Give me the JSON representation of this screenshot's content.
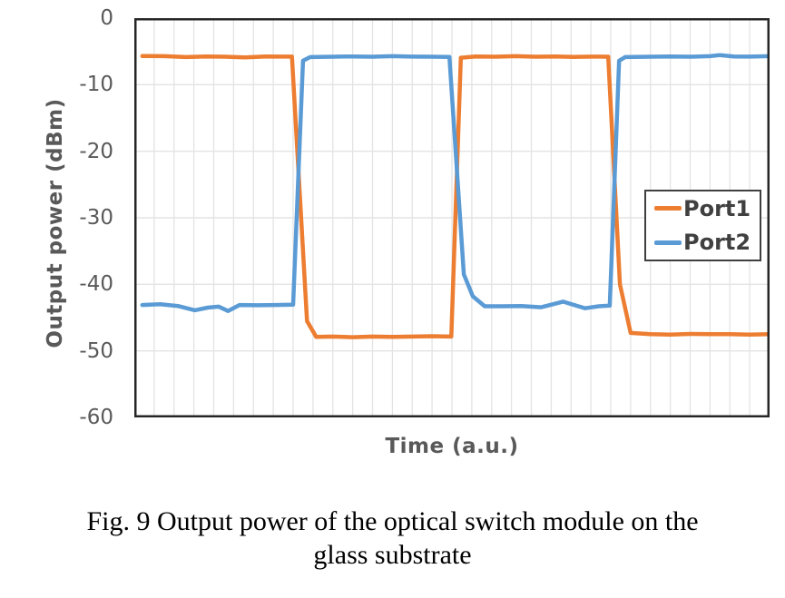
{
  "chart_data": {
    "type": "line",
    "title": "",
    "xlabel": "Time (a.u.)",
    "ylabel": "Output power (dBm)",
    "x_range": [
      0,
      32
    ],
    "y_range": [
      -60,
      0
    ],
    "y_ticks": [
      0,
      -10,
      -20,
      -30,
      -40,
      -50,
      -60
    ],
    "x_tick_labels": [],
    "grid": {
      "vertical_divisions": 32,
      "horizontal_divisions": 6,
      "color": "#E3E3E3",
      "visible": true
    },
    "axis": {
      "border_color": "#262626",
      "text_color": "#595959"
    },
    "legend": {
      "position": "inside-right",
      "border_color": "#3F3F3F",
      "text_color": "#404040"
    },
    "series": [
      {
        "name": "Port1",
        "color": "#ED7D31",
        "high_level_dBm": -5.8,
        "low_level_dBm": -47.8,
        "points": [
          [
            0.4,
            -5.7
          ],
          [
            1.5,
            -5.72
          ],
          [
            2.6,
            -5.85
          ],
          [
            3.6,
            -5.75
          ],
          [
            4.6,
            -5.8
          ],
          [
            5.6,
            -5.9
          ],
          [
            6.6,
            -5.75
          ],
          [
            7.4,
            -5.78
          ],
          [
            7.94,
            -5.78
          ],
          [
            8.7,
            -45.5
          ],
          [
            9.16,
            -47.9
          ],
          [
            10,
            -47.85
          ],
          [
            11,
            -47.95
          ],
          [
            12,
            -47.85
          ],
          [
            13,
            -47.9
          ],
          [
            14,
            -47.85
          ],
          [
            15,
            -47.8
          ],
          [
            15.97,
            -47.85
          ],
          [
            16.45,
            -5.95
          ],
          [
            17.2,
            -5.75
          ],
          [
            18.2,
            -5.8
          ],
          [
            19.2,
            -5.72
          ],
          [
            20.2,
            -5.8
          ],
          [
            21.2,
            -5.75
          ],
          [
            22.2,
            -5.82
          ],
          [
            23.2,
            -5.78
          ],
          [
            23.87,
            -5.8
          ],
          [
            24.46,
            -40.0
          ],
          [
            25.0,
            -47.3
          ],
          [
            26,
            -47.5
          ],
          [
            27,
            -47.55
          ],
          [
            28,
            -47.45
          ],
          [
            29,
            -47.5
          ],
          [
            30,
            -47.5
          ],
          [
            31,
            -47.55
          ],
          [
            32,
            -47.5
          ]
        ]
      },
      {
        "name": "Port2",
        "color": "#5B9BD5",
        "high_level_dBm": -5.8,
        "low_level_dBm": -43.2,
        "points": [
          [
            0.4,
            -43.1
          ],
          [
            1.3,
            -43.0
          ],
          [
            2.2,
            -43.25
          ],
          [
            3.05,
            -43.9
          ],
          [
            3.7,
            -43.5
          ],
          [
            4.25,
            -43.35
          ],
          [
            4.72,
            -44.0
          ],
          [
            5.3,
            -43.1
          ],
          [
            6.2,
            -43.15
          ],
          [
            7.1,
            -43.1
          ],
          [
            8.0,
            -43.05
          ],
          [
            8.5,
            -6.4
          ],
          [
            8.86,
            -5.85
          ],
          [
            10,
            -5.8
          ],
          [
            11,
            -5.75
          ],
          [
            12,
            -5.8
          ],
          [
            13,
            -5.72
          ],
          [
            14,
            -5.78
          ],
          [
            15,
            -5.8
          ],
          [
            15.87,
            -5.82
          ],
          [
            16.6,
            -38.5
          ],
          [
            17.05,
            -41.8
          ],
          [
            17.65,
            -43.3
          ],
          [
            18.5,
            -43.3
          ],
          [
            19.5,
            -43.25
          ],
          [
            20.5,
            -43.45
          ],
          [
            21.6,
            -42.6
          ],
          [
            22.7,
            -43.6
          ],
          [
            23.4,
            -43.3
          ],
          [
            23.95,
            -43.2
          ],
          [
            24.42,
            -6.4
          ],
          [
            24.72,
            -5.85
          ],
          [
            26,
            -5.8
          ],
          [
            27,
            -5.75
          ],
          [
            28,
            -5.8
          ],
          [
            29,
            -5.72
          ],
          [
            29.5,
            -5.55
          ],
          [
            30.2,
            -5.75
          ],
          [
            31,
            -5.78
          ],
          [
            32,
            -5.72
          ]
        ]
      }
    ]
  },
  "caption": {
    "line1": "Fig. 9 Output power of the optical switch module on the",
    "line2": "glass substrate"
  }
}
